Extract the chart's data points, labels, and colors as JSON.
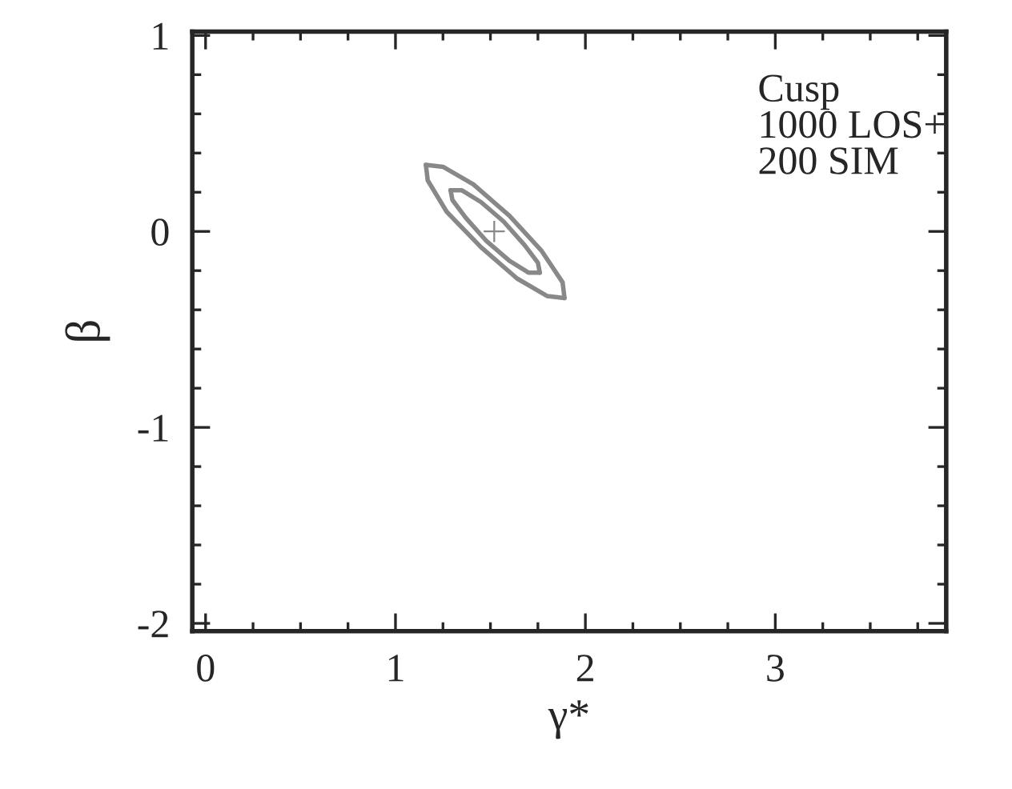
{
  "chart_data": {
    "type": "line",
    "xlabel": "γ*",
    "ylabel": "β",
    "xlim": [
      -0.07,
      3.9
    ],
    "ylim": [
      -2.04,
      1.02
    ],
    "xticks": [
      0,
      1,
      2,
      3
    ],
    "yticks": [
      -2,
      -1,
      0,
      1
    ],
    "grid": false,
    "legend": false,
    "annotations": [
      "Cusp\n1000 LOS+\n200 SIM"
    ],
    "series": [
      {
        "color": "#888888",
        "marker": "none",
        "x": [
          1.16,
          1.25,
          1.41,
          1.6,
          1.77,
          1.88,
          1.89
        ],
        "values": [
          0.34,
          0.33,
          0.24,
          0.08,
          -0.1,
          -0.26,
          -0.34
        ]
      },
      {
        "color": "#888888",
        "marker": "none",
        "x": [
          1.16,
          1.17,
          1.27,
          1.45,
          1.64,
          1.8,
          1.89
        ],
        "values": [
          0.34,
          0.26,
          0.1,
          -0.08,
          -0.24,
          -0.33,
          -0.34
        ]
      },
      {
        "color": "#888888",
        "marker": "none",
        "x": [
          1.29,
          1.35,
          1.45,
          1.57,
          1.68,
          1.75,
          1.76
        ],
        "values": [
          0.21,
          0.21,
          0.15,
          0.05,
          -0.07,
          -0.16,
          -0.21
        ]
      },
      {
        "color": "#888888",
        "marker": "none",
        "x": [
          1.29,
          1.3,
          1.37,
          1.48,
          1.6,
          1.7,
          1.76
        ],
        "values": [
          0.21,
          0.16,
          0.07,
          -0.05,
          -0.15,
          -0.21,
          -0.21
        ]
      },
      {
        "type": "scatter",
        "color": "#888888",
        "marker": "cross",
        "x": [
          1.52
        ],
        "values": [
          0.0
        ]
      }
    ]
  }
}
